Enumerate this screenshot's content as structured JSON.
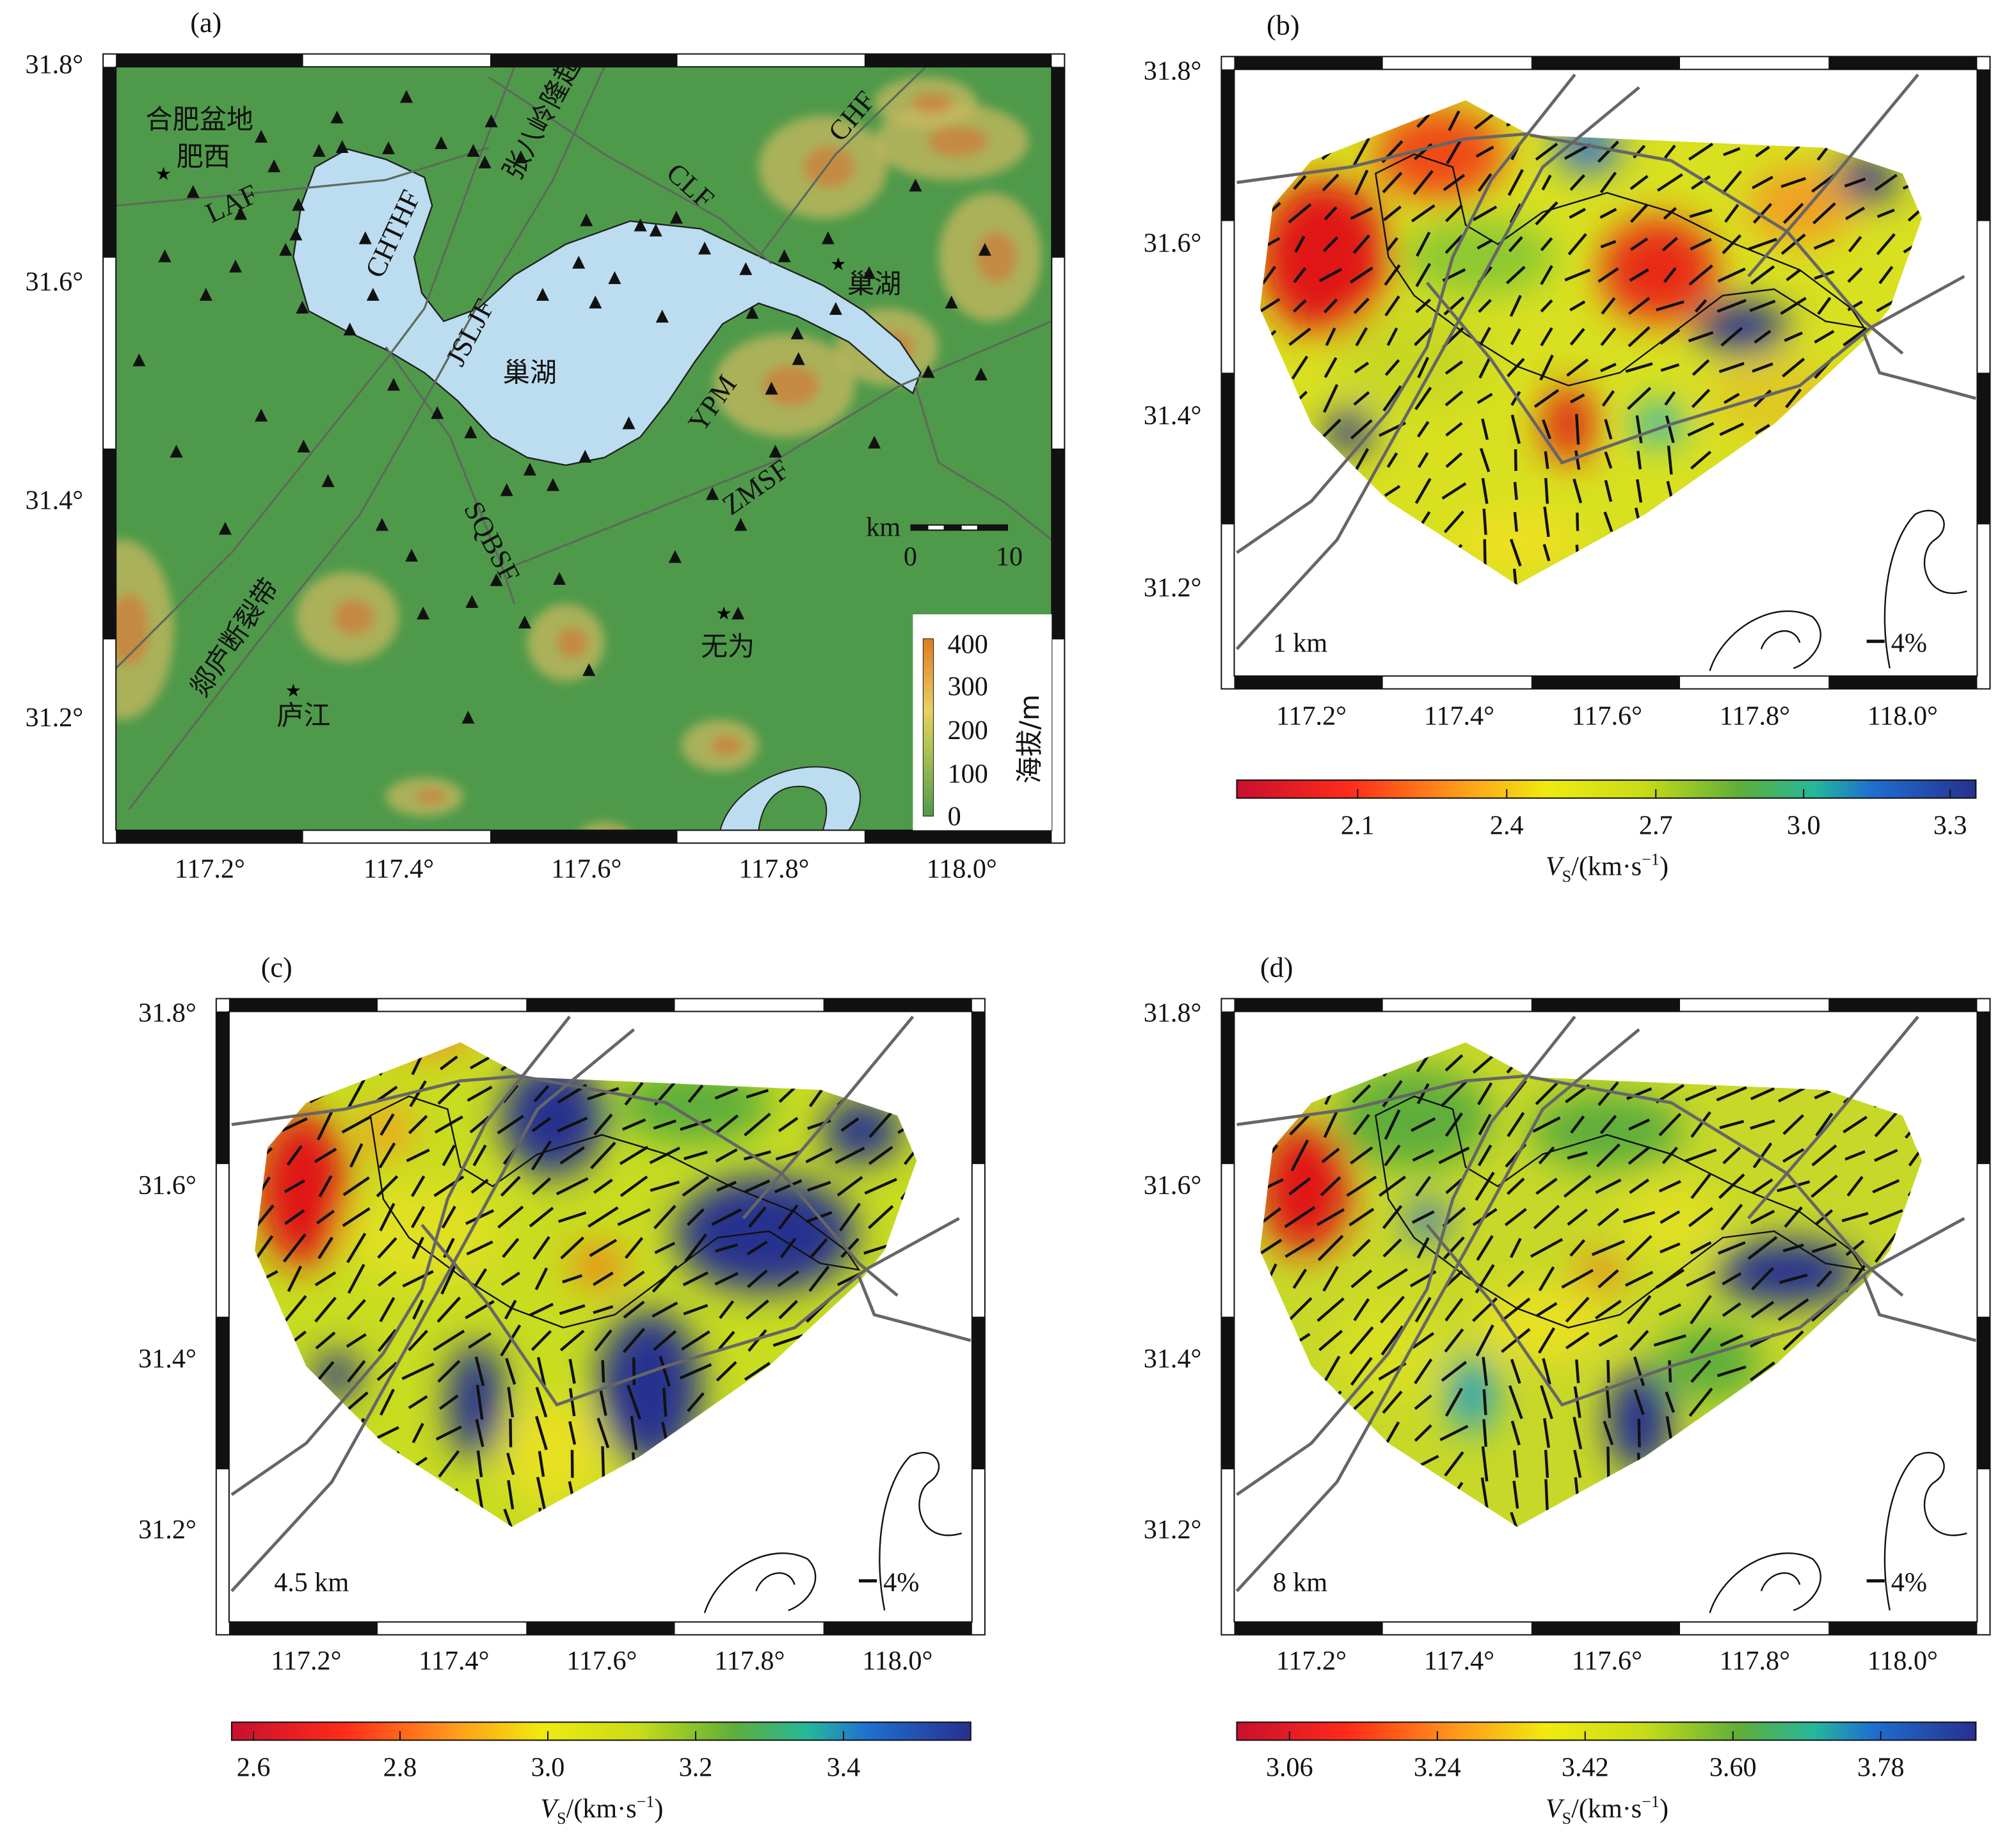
{
  "panels": {
    "a": {
      "label": "(a)",
      "y_ticks": [
        "31.8°",
        "31.6°",
        "31.4°",
        "31.2°"
      ],
      "x_ticks": [
        "117.2°",
        "117.4°",
        "117.6°",
        "117.8°",
        "118.0°"
      ],
      "places": {
        "hefei_basin": "合肥盆地",
        "feixi": "肥西",
        "chaohu_city": "巢湖",
        "chaohu_lake": "巢湖",
        "lujiang": "庐江",
        "wuwei": "无为",
        "zhangbaling": "张八岭隆起",
        "tanlu": "郯庐断裂带"
      },
      "faults": {
        "laf": "LAF",
        "chthf": "CHTHF",
        "jsljf": "JSLJF",
        "clf": "CLF",
        "chf": "CHF",
        "ypm": "YPM",
        "zmsf": "ZMSF",
        "sqbsf": "SQBSF"
      },
      "scalebar": {
        "unit": "km",
        "start": "0",
        "end": "10"
      },
      "elevation_legend": {
        "title": "海拔/m",
        "ticks": [
          "400",
          "300",
          "200",
          "100",
          "0"
        ]
      }
    },
    "b": {
      "label": "(b)",
      "depth": "1 km",
      "anisotropy_scale": "4%",
      "y_ticks": [
        "31.8°",
        "31.6°",
        "31.4°",
        "31.2°"
      ],
      "x_ticks": [
        "117.2°",
        "117.4°",
        "117.6°",
        "117.8°",
        "118.0°"
      ],
      "colorbar": {
        "ticks": [
          "2.1",
          "2.4",
          "2.7",
          "3.0",
          "3.3"
        ],
        "title_v": "V",
        "title_sub": "S",
        "title_unit": "/(km·s",
        "title_exp": "−1",
        "title_close": ")"
      }
    },
    "c": {
      "label": "(c)",
      "depth": "4.5 km",
      "anisotropy_scale": "4%",
      "y_ticks": [
        "31.8°",
        "31.6°",
        "31.4°",
        "31.2°"
      ],
      "x_ticks": [
        "117.2°",
        "117.4°",
        "117.6°",
        "117.8°",
        "118.0°"
      ],
      "colorbar": {
        "ticks": [
          "2.6",
          "2.8",
          "3.0",
          "3.2",
          "3.4"
        ],
        "title_v": "V",
        "title_sub": "S",
        "title_unit": "/(km·s",
        "title_exp": "−1",
        "title_close": ")"
      }
    },
    "d": {
      "label": "(d)",
      "depth": "8 km",
      "anisotropy_scale": "4%",
      "y_ticks": [
        "31.8°",
        "31.6°",
        "31.4°",
        "31.2°"
      ],
      "x_ticks": [
        "117.2°",
        "117.4°",
        "117.6°",
        "117.8°",
        "118.0°"
      ],
      "colorbar": {
        "ticks": [
          "3.06",
          "3.24",
          "3.42",
          "3.60",
          "3.78"
        ],
        "title_v": "V",
        "title_sub": "S",
        "title_unit": "/(km·s",
        "title_exp": "−1",
        "title_close": ")"
      }
    }
  },
  "colors": {
    "terrain_green": "#4f9a4a",
    "lake_blue": "#bcdcf0",
    "fault_gray": "#666666",
    "cbar": [
      "#c8102e",
      "#ff2a1a",
      "#ff9a1a",
      "#f0ea10",
      "#a8cc20",
      "#5fae3a",
      "#25b89a",
      "#1f6fd0",
      "#27308f"
    ]
  }
}
